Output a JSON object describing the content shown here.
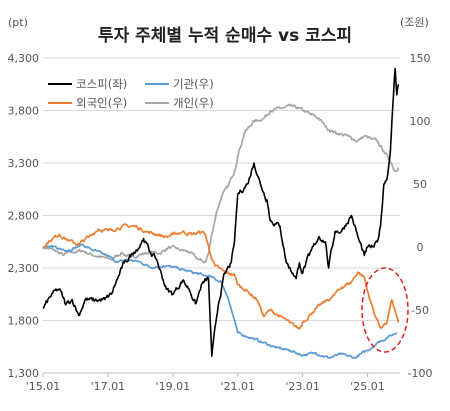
{
  "chart_data": {
    "type": "line",
    "title": "투자 주체별 누적 순매수 vs 코스피",
    "left_axis": {
      "unit": "(pt)",
      "min": 1300,
      "max": 4300,
      "ticks": [
        1300,
        1800,
        2300,
        2800,
        3300,
        3800,
        4300
      ],
      "tick_labels": [
        "1,300",
        "1,800",
        "2,300",
        "2,800",
        "3,300",
        "3,800",
        "4,300"
      ]
    },
    "right_axis": {
      "unit": "(조원)",
      "min": -100,
      "max": 150,
      "ticks": [
        -100,
        -50,
        0,
        50,
        100,
        150
      ],
      "tick_labels": [
        "-100",
        "-50",
        "0",
        "50",
        "100",
        "150"
      ]
    },
    "x_axis": {
      "min": 2015.0,
      "max": 2026.0,
      "ticks": [
        2015,
        2017,
        2019,
        2021,
        2023,
        2025
      ],
      "tick_labels": [
        "'15.01",
        "'17.01",
        "'19.01",
        "'21.01",
        "'23.01",
        "'25.01"
      ]
    },
    "grid": "horizontal",
    "legend": {
      "placement": "top-left",
      "columns": 2
    },
    "series": [
      {
        "name": "코스피(좌)",
        "axis": "left",
        "color": "#000000",
        "points": [
          [
            2015.0,
            1915
          ],
          [
            2015.3,
            2060
          ],
          [
            2015.5,
            2100
          ],
          [
            2015.7,
            1950
          ],
          [
            2015.9,
            2000
          ],
          [
            2016.1,
            1850
          ],
          [
            2016.3,
            2000
          ],
          [
            2016.6,
            1990
          ],
          [
            2016.9,
            2000
          ],
          [
            2017.1,
            2050
          ],
          [
            2017.3,
            2200
          ],
          [
            2017.5,
            2350
          ],
          [
            2017.8,
            2450
          ],
          [
            2018.0,
            2520
          ],
          [
            2018.1,
            2580
          ],
          [
            2018.3,
            2450
          ],
          [
            2018.5,
            2380
          ],
          [
            2018.8,
            2100
          ],
          [
            2019.0,
            2050
          ],
          [
            2019.3,
            2180
          ],
          [
            2019.5,
            2100
          ],
          [
            2019.7,
            1960
          ],
          [
            2019.9,
            2150
          ],
          [
            2020.1,
            2200
          ],
          [
            2020.2,
            1460
          ],
          [
            2020.4,
            1950
          ],
          [
            2020.6,
            2250
          ],
          [
            2020.8,
            2350
          ],
          [
            2020.9,
            2550
          ],
          [
            2021.0,
            3000
          ],
          [
            2021.3,
            3100
          ],
          [
            2021.5,
            3300
          ],
          [
            2021.7,
            3100
          ],
          [
            2021.9,
            2950
          ],
          [
            2022.0,
            2750
          ],
          [
            2022.3,
            2700
          ],
          [
            2022.5,
            2350
          ],
          [
            2022.7,
            2250
          ],
          [
            2022.8,
            2200
          ],
          [
            2022.9,
            2350
          ],
          [
            2023.0,
            2250
          ],
          [
            2023.2,
            2420
          ],
          [
            2023.5,
            2600
          ],
          [
            2023.7,
            2550
          ],
          [
            2023.8,
            2300
          ],
          [
            2024.0,
            2650
          ],
          [
            2024.2,
            2650
          ],
          [
            2024.5,
            2800
          ],
          [
            2024.7,
            2600
          ],
          [
            2024.9,
            2420
          ],
          [
            2025.0,
            2500
          ],
          [
            2025.2,
            2500
          ],
          [
            2025.3,
            2550
          ],
          [
            2025.4,
            2700
          ],
          [
            2025.5,
            3100
          ],
          [
            2025.6,
            3150
          ],
          [
            2025.7,
            3400
          ],
          [
            2025.75,
            3700
          ],
          [
            2025.8,
            3950
          ],
          [
            2025.85,
            4200
          ],
          [
            2025.9,
            3950
          ],
          [
            2025.95,
            4050
          ]
        ]
      },
      {
        "name": "기관(우)",
        "axis": "right",
        "color": "#5b9bd5",
        "points": [
          [
            2015.0,
            0
          ],
          [
            2015.3,
            0
          ],
          [
            2015.6,
            -2
          ],
          [
            2015.9,
            -2
          ],
          [
            2016.2,
            2
          ],
          [
            2016.5,
            -2
          ],
          [
            2016.8,
            -5
          ],
          [
            2017.0,
            -7
          ],
          [
            2017.3,
            -12
          ],
          [
            2017.6,
            -10
          ],
          [
            2018.0,
            -12
          ],
          [
            2018.3,
            -16
          ],
          [
            2018.7,
            -15
          ],
          [
            2019.0,
            -16
          ],
          [
            2019.3,
            -18
          ],
          [
            2019.6,
            -20
          ],
          [
            2019.9,
            -22
          ],
          [
            2020.2,
            -24
          ],
          [
            2020.5,
            -28
          ],
          [
            2020.7,
            -40
          ],
          [
            2021.0,
            -68
          ],
          [
            2021.4,
            -72
          ],
          [
            2021.8,
            -76
          ],
          [
            2022.2,
            -80
          ],
          [
            2022.6,
            -82
          ],
          [
            2023.0,
            -86
          ],
          [
            2023.4,
            -84
          ],
          [
            2023.8,
            -88
          ],
          [
            2024.2,
            -85
          ],
          [
            2024.6,
            -88
          ],
          [
            2025.0,
            -82
          ],
          [
            2025.3,
            -76
          ],
          [
            2025.6,
            -72
          ],
          [
            2025.9,
            -68
          ]
        ]
      },
      {
        "name": "외국인(우)",
        "axis": "right",
        "color": "#ed7d31",
        "points": [
          [
            2015.0,
            0
          ],
          [
            2015.2,
            5
          ],
          [
            2015.5,
            10
          ],
          [
            2015.8,
            5
          ],
          [
            2016.1,
            2
          ],
          [
            2016.4,
            8
          ],
          [
            2016.7,
            14
          ],
          [
            2017.0,
            13
          ],
          [
            2017.3,
            15
          ],
          [
            2017.6,
            17
          ],
          [
            2017.9,
            16
          ],
          [
            2018.2,
            12
          ],
          [
            2018.5,
            10
          ],
          [
            2018.8,
            8
          ],
          [
            2019.0,
            10
          ],
          [
            2019.3,
            12
          ],
          [
            2019.6,
            10
          ],
          [
            2019.9,
            12
          ],
          [
            2020.0,
            10
          ],
          [
            2020.15,
            -5
          ],
          [
            2020.3,
            -15
          ],
          [
            2020.6,
            -20
          ],
          [
            2020.9,
            -22
          ],
          [
            2021.0,
            -30
          ],
          [
            2021.3,
            -35
          ],
          [
            2021.6,
            -42
          ],
          [
            2021.8,
            -55
          ],
          [
            2022.0,
            -50
          ],
          [
            2022.3,
            -55
          ],
          [
            2022.6,
            -60
          ],
          [
            2022.9,
            -65
          ],
          [
            2023.0,
            -60
          ],
          [
            2023.3,
            -52
          ],
          [
            2023.6,
            -45
          ],
          [
            2023.9,
            -40
          ],
          [
            2024.2,
            -32
          ],
          [
            2024.5,
            -28
          ],
          [
            2024.7,
            -20
          ],
          [
            2024.9,
            -24
          ],
          [
            2025.0,
            -35
          ],
          [
            2025.2,
            -52
          ],
          [
            2025.4,
            -64
          ],
          [
            2025.6,
            -60
          ],
          [
            2025.75,
            -42
          ],
          [
            2025.85,
            -50
          ],
          [
            2025.95,
            -60
          ]
        ]
      },
      {
        "name": "개인(우)",
        "axis": "right",
        "color": "#a5a5a5",
        "points": [
          [
            2015.0,
            0
          ],
          [
            2015.3,
            -2
          ],
          [
            2015.6,
            -6
          ],
          [
            2015.9,
            -4
          ],
          [
            2016.2,
            -3
          ],
          [
            2016.5,
            -6
          ],
          [
            2016.8,
            -8
          ],
          [
            2017.1,
            -10
          ],
          [
            2017.4,
            -5
          ],
          [
            2017.7,
            -8
          ],
          [
            2018.0,
            -6
          ],
          [
            2018.3,
            -4
          ],
          [
            2018.6,
            -5
          ],
          [
            2018.9,
            0
          ],
          [
            2019.2,
            -2
          ],
          [
            2019.5,
            -4
          ],
          [
            2019.8,
            -10
          ],
          [
            2020.0,
            -12
          ],
          [
            2020.1,
            -5
          ],
          [
            2020.2,
            10
          ],
          [
            2020.35,
            28
          ],
          [
            2020.5,
            40
          ],
          [
            2020.7,
            48
          ],
          [
            2020.9,
            60
          ],
          [
            2021.0,
            72
          ],
          [
            2021.2,
            90
          ],
          [
            2021.5,
            100
          ],
          [
            2021.8,
            102
          ],
          [
            2022.0,
            108
          ],
          [
            2022.3,
            110
          ],
          [
            2022.6,
            112
          ],
          [
            2022.9,
            110
          ],
          [
            2023.2,
            106
          ],
          [
            2023.5,
            102
          ],
          [
            2023.8,
            93
          ],
          [
            2024.1,
            90
          ],
          [
            2024.4,
            88
          ],
          [
            2024.7,
            84
          ],
          [
            2024.9,
            88
          ],
          [
            2025.1,
            86
          ],
          [
            2025.3,
            84
          ],
          [
            2025.5,
            76
          ],
          [
            2025.7,
            68
          ],
          [
            2025.85,
            60
          ],
          [
            2025.95,
            63
          ]
        ]
      }
    ]
  }
}
